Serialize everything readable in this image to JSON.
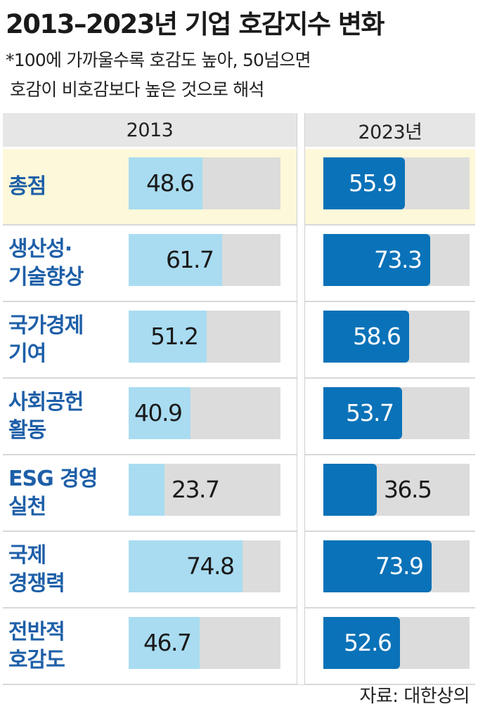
{
  "title": "2013–2023년 기업 호감지수 변화",
  "note_line1": "*100에 가까울수록 호감도 높아, 50넘으면",
  "note_line2": "호감이 비호감보다 높은 것으로 해석",
  "source": "자료: 대한상의",
  "colors": {
    "bar_2013": "#a9dcf1",
    "bar_2023": "#0a72b8",
    "track": "#dcdcdc",
    "label": "#1e5fa8",
    "highlight_row": "#fdf8d9"
  },
  "chart_data": {
    "type": "bar",
    "orientation": "horizontal",
    "columns": [
      "2013",
      "2023년"
    ],
    "ylim": [
      0,
      100
    ],
    "categories": [
      [
        "총점"
      ],
      [
        "생산성·",
        "기술향상"
      ],
      [
        "국가경제",
        "기여"
      ],
      [
        "사회공헌",
        "활동"
      ],
      [
        "ESG 경영",
        "실천"
      ],
      [
        "국제",
        "경쟁력"
      ],
      [
        "전반적",
        "호감도"
      ]
    ],
    "series": [
      {
        "name": "2013",
        "values": [
          48.6,
          61.7,
          51.2,
          40.9,
          23.7,
          74.8,
          46.7
        ]
      },
      {
        "name": "2023년",
        "values": [
          55.9,
          73.3,
          58.6,
          53.7,
          36.5,
          73.9,
          52.6
        ]
      }
    ],
    "value_labels": [
      [
        "48.6",
        "61.7",
        "51.2",
        "40.9",
        "23.7",
        "74.8",
        "46.7"
      ],
      [
        "55.9",
        "73.3",
        "58.6",
        "53.7",
        "36.5",
        "73.9",
        "52.6"
      ]
    ]
  }
}
